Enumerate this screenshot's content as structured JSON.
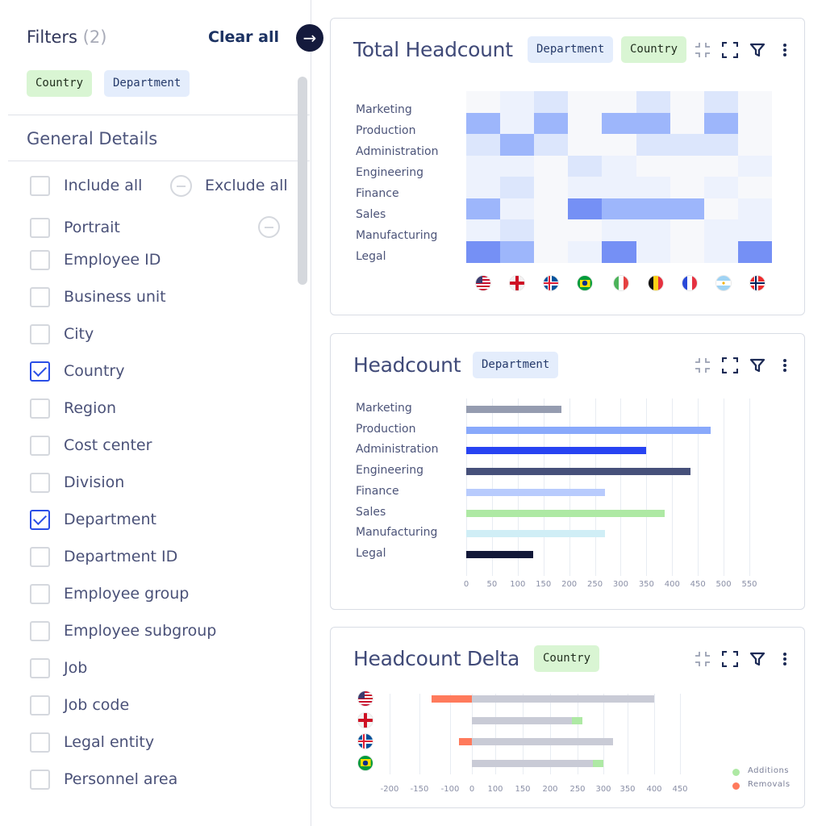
{
  "sidebar": {
    "title": "Filters",
    "count": "(2)",
    "clear_all": "Clear all",
    "active_filters": [
      {
        "label": "Country",
        "color": "#d9f5d3"
      },
      {
        "label": "Department",
        "color": "#e4edfc"
      }
    ],
    "section": "General Details",
    "include_all": "Include all",
    "exclude_all": "Exclude all",
    "items": [
      {
        "label": "Portrait",
        "checked": false
      },
      {
        "label": "Employee ID",
        "checked": false
      },
      {
        "label": "Business unit",
        "checked": false
      },
      {
        "label": "City",
        "checked": false
      },
      {
        "label": "Country",
        "checked": true
      },
      {
        "label": "Region",
        "checked": false
      },
      {
        "label": "Cost center",
        "checked": false
      },
      {
        "label": "Division",
        "checked": false
      },
      {
        "label": "Department",
        "checked": true
      },
      {
        "label": "Department ID",
        "checked": false
      },
      {
        "label": "Employee group",
        "checked": false
      },
      {
        "label": "Employee subgroup",
        "checked": false
      },
      {
        "label": "Job",
        "checked": false
      },
      {
        "label": "Job code",
        "checked": false
      },
      {
        "label": "Legal entity",
        "checked": false
      },
      {
        "label": "Personnel area",
        "checked": false
      }
    ]
  },
  "icons": [
    "arrow-right-icon",
    "collapse-icon",
    "expand-icon",
    "filter-icon",
    "more-vertical-icon",
    "minus-circle-icon",
    "checkbox-icon"
  ],
  "chart_data": [
    {
      "type": "heatmap",
      "title": "Total Headcount",
      "tags": [
        "Department",
        "Country"
      ],
      "rows": [
        "Marketing",
        "Production",
        "Administration",
        "Engineering",
        "Finance",
        "Sales",
        "Manufacturing",
        "Legal"
      ],
      "columns": [
        "us",
        "england",
        "iceland",
        "brazil",
        "italy",
        "belgium",
        "france",
        "argentina",
        "norway"
      ],
      "intensity_scale": [
        0,
        4
      ],
      "values": [
        [
          0,
          1,
          2,
          0,
          0,
          2,
          0,
          2,
          0
        ],
        [
          3,
          1,
          3,
          0,
          3,
          3,
          0,
          3,
          0
        ],
        [
          2,
          3,
          2,
          0,
          0,
          2,
          2,
          2,
          0
        ],
        [
          1,
          1,
          0,
          2,
          1,
          0,
          0,
          0,
          1
        ],
        [
          1,
          2,
          0,
          1,
          1,
          1,
          0,
          1,
          0
        ],
        [
          3,
          1,
          0,
          4,
          3,
          3,
          3,
          0,
          1
        ],
        [
          1,
          2,
          0,
          0,
          1,
          1,
          0,
          1,
          1
        ],
        [
          4,
          3,
          0,
          1,
          4,
          1,
          0,
          1,
          4
        ]
      ],
      "colors": [
        "#f7f8fb",
        "#edf2fd",
        "#dce6fc",
        "#9db6fb",
        "#7590f5"
      ]
    },
    {
      "type": "bar",
      "orientation": "horizontal",
      "title": "Headcount",
      "tags": [
        "Department"
      ],
      "categories": [
        "Marketing",
        "Production",
        "Administration",
        "Engineering",
        "Finance",
        "Sales",
        "Manufacturing",
        "Legal"
      ],
      "values": [
        185,
        475,
        350,
        435,
        270,
        385,
        270,
        130
      ],
      "colors": [
        "#959cb0",
        "#89a9fb",
        "#2743f2",
        "#46507a",
        "#b8cbfd",
        "#aee9a4",
        "#d0eef6",
        "#121838"
      ],
      "xlim": [
        0,
        550
      ],
      "xticks": [
        0,
        50,
        100,
        150,
        200,
        250,
        300,
        350,
        400,
        450,
        500,
        550
      ],
      "grid": true
    },
    {
      "type": "bar",
      "orientation": "horizontal",
      "stacked": true,
      "title": "Headcount Delta",
      "tags": [
        "Country"
      ],
      "categories": [
        "us",
        "england",
        "iceland",
        "brazil"
      ],
      "base": [
        400,
        240,
        320,
        280
      ],
      "additions": [
        0,
        20,
        0,
        20
      ],
      "removals": [
        130,
        0,
        60,
        0
      ],
      "xticks": [
        -200,
        -150,
        -100,
        0,
        100,
        150,
        200,
        250,
        300,
        350,
        400,
        450
      ],
      "legend": {
        "position": "bottom-right",
        "entries": [
          {
            "name": "Additions",
            "color": "#aee9a4"
          },
          {
            "name": "Removals",
            "color": "#ff7a5c"
          }
        ]
      },
      "base_color": "#c9cbd6",
      "grid": true
    }
  ]
}
